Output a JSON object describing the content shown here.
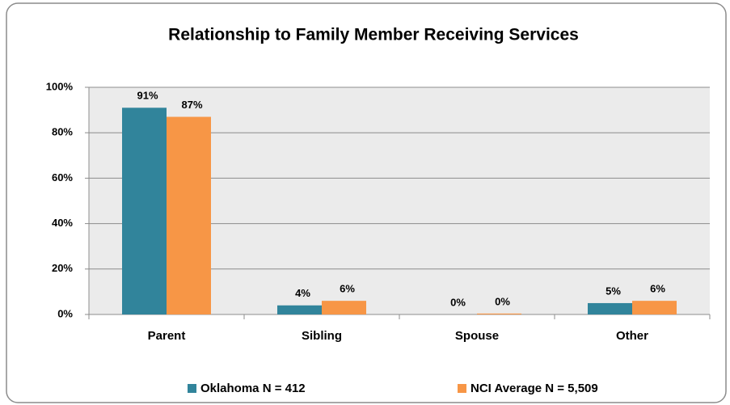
{
  "chart_data": {
    "type": "bar",
    "title": "Relationship to Family Member Receiving Services",
    "categories": [
      "Parent",
      "Sibling",
      "Spouse",
      "Other"
    ],
    "series": [
      {
        "name": "Oklahoma N = 412",
        "color": "#31849b",
        "values": [
          91,
          4,
          0,
          5
        ],
        "value_labels": [
          "91%",
          "4%",
          "0%",
          "5%"
        ]
      },
      {
        "name": "NCI Average N = 5,509",
        "color": "#f79646",
        "values": [
          87,
          6,
          0.4,
          6
        ],
        "value_labels": [
          "87%",
          "6%",
          "0%",
          "6%"
        ]
      }
    ],
    "ylim": [
      0,
      100
    ],
    "yticks": [
      {
        "value": 0,
        "label": "0%"
      },
      {
        "value": 20,
        "label": "20%"
      },
      {
        "value": 40,
        "label": "40%"
      },
      {
        "value": 60,
        "label": "60%"
      },
      {
        "value": 80,
        "label": "80%"
      },
      {
        "value": 100,
        "label": "100%"
      }
    ],
    "grid": true,
    "legend": "bottom"
  }
}
